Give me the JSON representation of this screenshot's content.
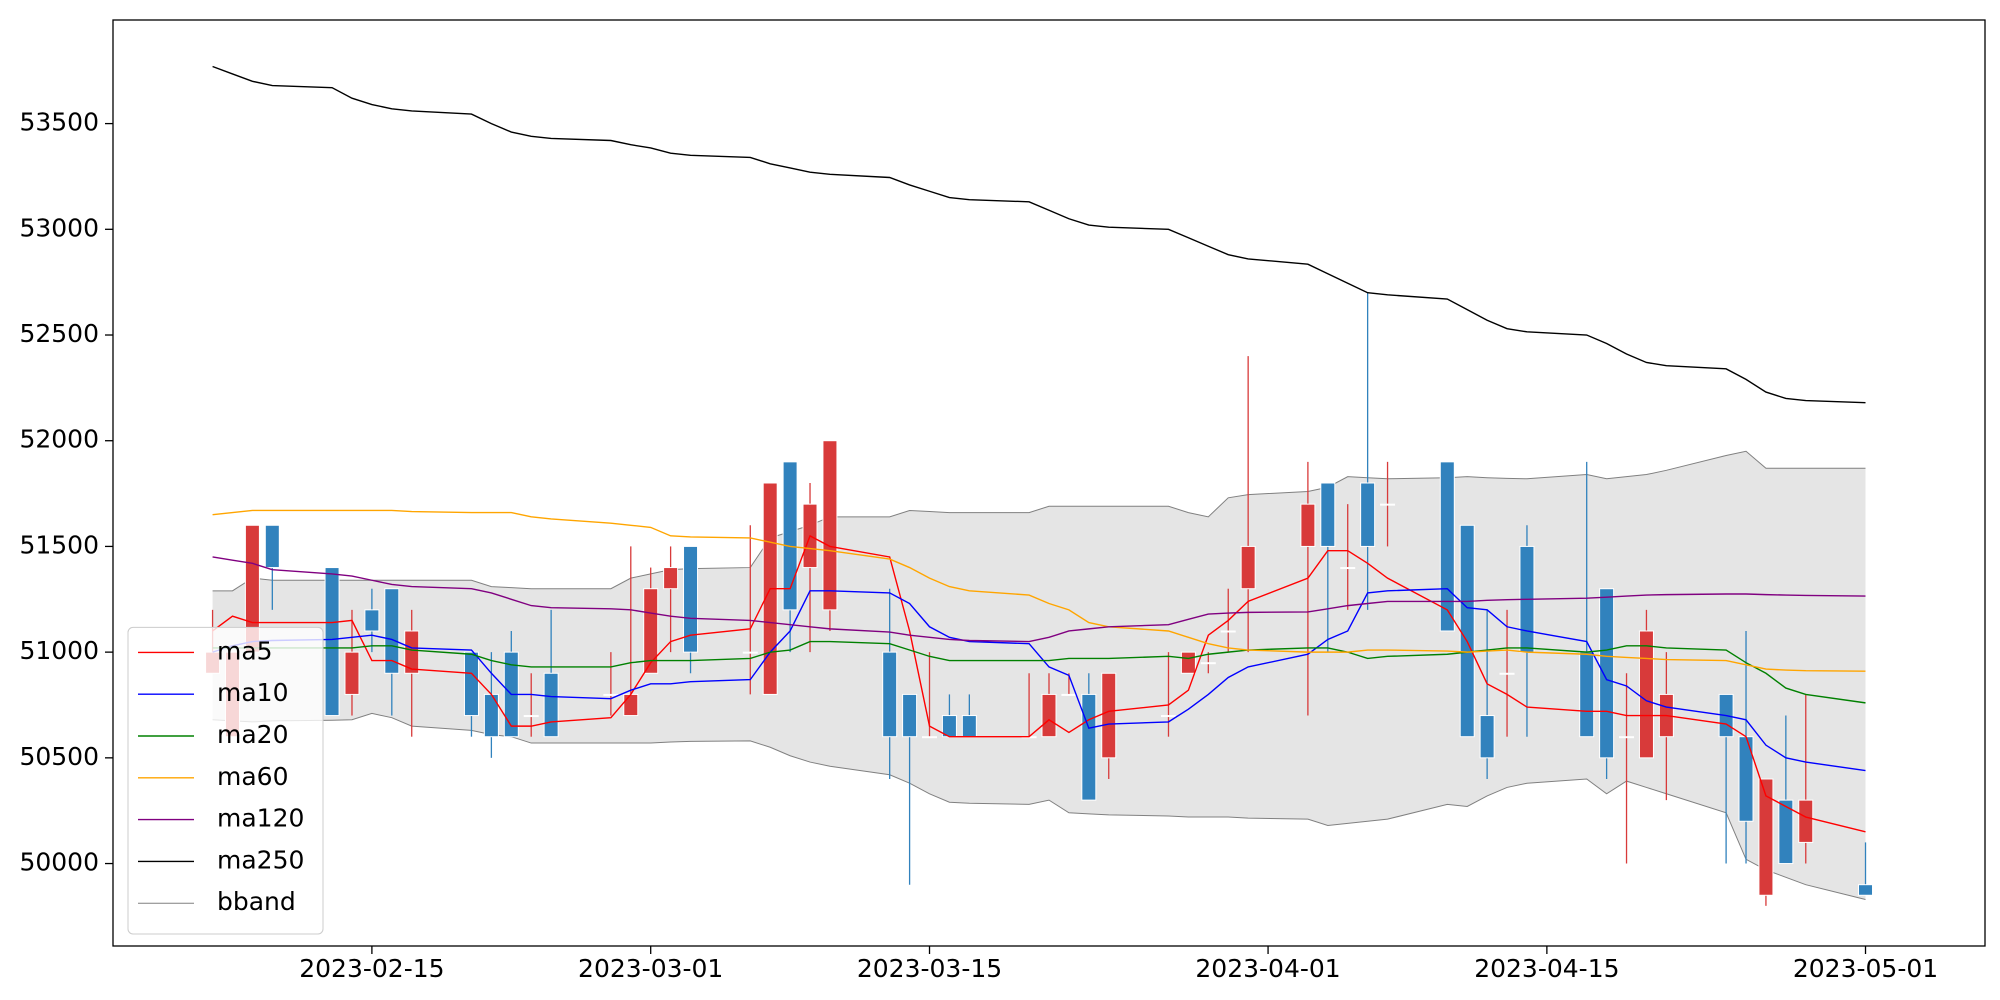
{
  "chart_data": {
    "type": "candlestick",
    "x": [
      "2023-02-07",
      "2023-02-08",
      "2023-02-09",
      "2023-02-10",
      "2023-02-13",
      "2023-02-14",
      "2023-02-15",
      "2023-02-16",
      "2023-02-17",
      "2023-02-20",
      "2023-02-21",
      "2023-02-22",
      "2023-02-23",
      "2023-02-24",
      "2023-02-27",
      "2023-02-28",
      "2023-03-01",
      "2023-03-02",
      "2023-03-03",
      "2023-03-06",
      "2023-03-07",
      "2023-03-08",
      "2023-03-09",
      "2023-03-10",
      "2023-03-13",
      "2023-03-14",
      "2023-03-15",
      "2023-03-16",
      "2023-03-17",
      "2023-03-20",
      "2023-03-21",
      "2023-03-22",
      "2023-03-23",
      "2023-03-24",
      "2023-03-27",
      "2023-03-28",
      "2023-03-29",
      "2023-03-30",
      "2023-03-31",
      "2023-04-03",
      "2023-04-04",
      "2023-04-05",
      "2023-04-06",
      "2023-04-07",
      "2023-04-10",
      "2023-04-11",
      "2023-04-12",
      "2023-04-13",
      "2023-04-14",
      "2023-04-17",
      "2023-04-18",
      "2023-04-19",
      "2023-04-20",
      "2023-04-21",
      "2023-04-24",
      "2023-04-25",
      "2023-04-26",
      "2023-04-27",
      "2023-04-28",
      "2023-05-01"
    ],
    "open": [
      50900,
      50600,
      51000,
      51600,
      51400,
      50800,
      51200,
      51300,
      50900,
      51000,
      50800,
      51000,
      50700,
      50900,
      50800,
      50700,
      50900,
      51300,
      51500,
      51000,
      50800,
      51900,
      51400,
      51200,
      51000,
      50800,
      50600,
      50700,
      50700,
      50600,
      50600,
      50800,
      50800,
      50500,
      50700,
      50900,
      50950,
      51100,
      51300,
      51500,
      51800,
      51400,
      51800,
      51700,
      51900,
      51600,
      50700,
      50900,
      51500,
      51000,
      51300,
      50600,
      50500,
      50600,
      50800,
      50600,
      49850,
      50300,
      50100,
      49900
    ],
    "high": [
      51200,
      51000,
      51600,
      51600,
      51400,
      51200,
      51300,
      51300,
      51200,
      51000,
      51000,
      51100,
      50900,
      51200,
      51000,
      51500,
      51400,
      51500,
      51500,
      51600,
      51800,
      51900,
      51800,
      52000,
      51300,
      50800,
      51000,
      50800,
      50800,
      50900,
      50900,
      50900,
      50900,
      50900,
      51000,
      51000,
      51000,
      51300,
      52400,
      51900,
      51800,
      51700,
      52700,
      51900,
      51900,
      51600,
      51200,
      51200,
      51600,
      51900,
      51300,
      50900,
      51200,
      51000,
      50800,
      51100,
      50400,
      50700,
      50800,
      50100
    ],
    "low": [
      50900,
      50600,
      51000,
      51200,
      50700,
      50700,
      51000,
      50700,
      50600,
      50600,
      50500,
      50600,
      50600,
      50600,
      50700,
      50700,
      50900,
      51000,
      50900,
      50800,
      50800,
      51000,
      51000,
      51100,
      50400,
      49900,
      50600,
      50600,
      50600,
      50600,
      50600,
      50800,
      50300,
      50400,
      50600,
      50900,
      50900,
      51000,
      51000,
      50700,
      51000,
      51200,
      51200,
      51500,
      51100,
      50600,
      50400,
      50600,
      50600,
      50600,
      50400,
      50000,
      50500,
      50300,
      50000,
      50000,
      49800,
      50000,
      50000,
      49850
    ],
    "close": [
      51000,
      51000,
      51600,
      51400,
      50700,
      51000,
      51100,
      50900,
      51100,
      50700,
      50600,
      50600,
      50700,
      50600,
      50800,
      50800,
      51300,
      51400,
      51000,
      51000,
      51800,
      51200,
      51700,
      52000,
      50600,
      50600,
      50600,
      50600,
      50600,
      50600,
      50800,
      50800,
      50300,
      50900,
      50700,
      51000,
      50950,
      51100,
      51500,
      51700,
      51500,
      51400,
      51500,
      51700,
      51100,
      50600,
      50500,
      50900,
      51000,
      50600,
      50500,
      50600,
      51100,
      50800,
      50600,
      50200,
      50400,
      50000,
      50300,
      49850
    ],
    "up_color": "#d83a3a",
    "down_color": "#3182bd",
    "series": [
      {
        "name": "ma5",
        "color": "red",
        "values": [
          51100,
          51170,
          51140,
          51140,
          51140,
          51150,
          50960,
          50960,
          50920,
          50900,
          50800,
          50650,
          50650,
          50670,
          50690,
          50800,
          50950,
          51050,
          51080,
          51110,
          51300,
          51300,
          51550,
          51500,
          51450,
          51100,
          50650,
          50600,
          50600,
          50600,
          50680,
          50620,
          50680,
          50720,
          50750,
          50820,
          51080,
          51150,
          51240,
          51350,
          51480,
          51480,
          51420,
          51350,
          51200,
          51050,
          50850,
          50800,
          50740,
          50720,
          50720,
          50700,
          50700,
          50700,
          50660,
          50600,
          50320,
          50270,
          50220,
          50150
        ]
      },
      {
        "name": "ma10",
        "color": "blue",
        "values": [
          51000,
          51030,
          51050,
          51055,
          51060,
          51070,
          51080,
          51060,
          51020,
          51010,
          50900,
          50800,
          50800,
          50790,
          50780,
          50820,
          50850,
          50850,
          50860,
          50870,
          51000,
          51100,
          51290,
          51290,
          51280,
          51230,
          51120,
          51070,
          51050,
          51040,
          50930,
          50890,
          50640,
          50660,
          50670,
          50730,
          50800,
          50880,
          50930,
          50990,
          51060,
          51100,
          51280,
          51290,
          51300,
          51210,
          51200,
          51120,
          51100,
          51050,
          50870,
          50840,
          50770,
          50740,
          50700,
          50680,
          50560,
          50500,
          50480,
          50440
        ]
      },
      {
        "name": "ma20",
        "color": "green",
        "values": [
          51020,
          51020,
          51020,
          51020,
          51020,
          51020,
          51030,
          51030,
          51010,
          50990,
          50960,
          50940,
          50930,
          50930,
          50930,
          50950,
          50960,
          50960,
          50960,
          50970,
          51000,
          51010,
          51050,
          51050,
          51040,
          51010,
          50980,
          50960,
          50960,
          50960,
          50960,
          50970,
          50970,
          50970,
          50980,
          50970,
          50990,
          51000,
          51010,
          51020,
          51020,
          51000,
          50970,
          50980,
          50990,
          51000,
          51010,
          51020,
          51020,
          51000,
          51010,
          51030,
          51030,
          51020,
          51010,
          50950,
          50900,
          50830,
          50800,
          50760
        ]
      },
      {
        "name": "ma60",
        "color": "orange",
        "values": [
          51650,
          51660,
          51670,
          51670,
          51670,
          51670,
          51670,
          51670,
          51665,
          51660,
          51660,
          51660,
          51640,
          51630,
          51610,
          51600,
          51590,
          51550,
          51545,
          51540,
          51520,
          51500,
          51490,
          51480,
          51440,
          51400,
          51350,
          51310,
          51290,
          51270,
          51230,
          51200,
          51140,
          51120,
          51100,
          51070,
          51040,
          51020,
          51010,
          51000,
          51000,
          51000,
          51010,
          51010,
          51005,
          51000,
          51005,
          51010,
          51000,
          50990,
          50980,
          50975,
          50970,
          50965,
          50960,
          50940,
          50920,
          50915,
          50912,
          50910
        ]
      },
      {
        "name": "ma120",
        "color": "purple",
        "values": [
          51450,
          51435,
          51420,
          51390,
          51370,
          51360,
          51340,
          51320,
          51310,
          51300,
          51280,
          51250,
          51220,
          51210,
          51205,
          51200,
          51185,
          51170,
          51160,
          51150,
          51140,
          51130,
          51120,
          51110,
          51095,
          51080,
          51070,
          51060,
          51055,
          51050,
          51070,
          51100,
          51110,
          51120,
          51130,
          51155,
          51180,
          51185,
          51188,
          51190,
          51205,
          51220,
          51230,
          51240,
          51240,
          51240,
          51245,
          51248,
          51250,
          51255,
          51260,
          51265,
          51270,
          51272,
          51275,
          51275,
          51272,
          51270,
          51268,
          51265
        ]
      },
      {
        "name": "ma250",
        "color": "black",
        "values": [
          53770,
          53735,
          53700,
          53680,
          53670,
          53620,
          53590,
          53570,
          53560,
          53545,
          53500,
          53460,
          53440,
          53430,
          53420,
          53400,
          53385,
          53360,
          53350,
          53340,
          53310,
          53290,
          53270,
          53260,
          53245,
          53210,
          53180,
          53150,
          53140,
          53130,
          53090,
          53050,
          53020,
          53010,
          53000,
          52960,
          52920,
          52880,
          52860,
          52835,
          52790,
          52745,
          52700,
          52690,
          52670,
          52620,
          52570,
          52530,
          52515,
          52500,
          52460,
          52410,
          52370,
          52355,
          52340,
          52290,
          52230,
          52200,
          52190,
          52180
        ]
      }
    ],
    "band": {
      "name": "bband",
      "color": "gray",
      "fill": "#e5e5e5",
      "upper": [
        51290,
        51290,
        51350,
        51340,
        51340,
        51340,
        51340,
        51340,
        51340,
        51340,
        51310,
        51305,
        51300,
        51300,
        51300,
        51350,
        51370,
        51390,
        51395,
        51400,
        51540,
        51570,
        51600,
        51640,
        51640,
        51670,
        51665,
        51660,
        51660,
        51660,
        51690,
        51690,
        51690,
        51690,
        51690,
        51660,
        51640,
        51730,
        51745,
        51760,
        51780,
        51830,
        51825,
        51820,
        51825,
        51830,
        51825,
        51822,
        51820,
        51840,
        51820,
        51830,
        51840,
        51860,
        51930,
        51950,
        51870,
        51870,
        51870,
        51870
      ],
      "lower": [
        50680,
        50675,
        50670,
        50675,
        50678,
        50680,
        50710,
        50690,
        50650,
        50630,
        50610,
        50600,
        50570,
        50570,
        50570,
        50570,
        50570,
        50575,
        50578,
        50580,
        50550,
        50510,
        50480,
        50460,
        50420,
        50380,
        50330,
        50290,
        50285,
        50280,
        50300,
        50240,
        50235,
        50230,
        50225,
        50220,
        50220,
        50220,
        50215,
        50210,
        50180,
        50190,
        50200,
        50210,
        50280,
        50270,
        50320,
        50360,
        50380,
        50400,
        50330,
        50390,
        50360,
        50330,
        50240,
        50020,
        49970,
        49935,
        49900,
        49830
      ]
    },
    "xlim": [
      "2023-02-02",
      "2023-05-07"
    ],
    "xticks": [
      "2023-02-15",
      "2023-03-01",
      "2023-03-15",
      "2023-04-01",
      "2023-04-15",
      "2023-05-01"
    ],
    "ylim": [
      49610,
      53990
    ],
    "yticks": [
      50000,
      50500,
      51000,
      51500,
      52000,
      52500,
      53000,
      53500
    ],
    "legend": "lower left"
  }
}
